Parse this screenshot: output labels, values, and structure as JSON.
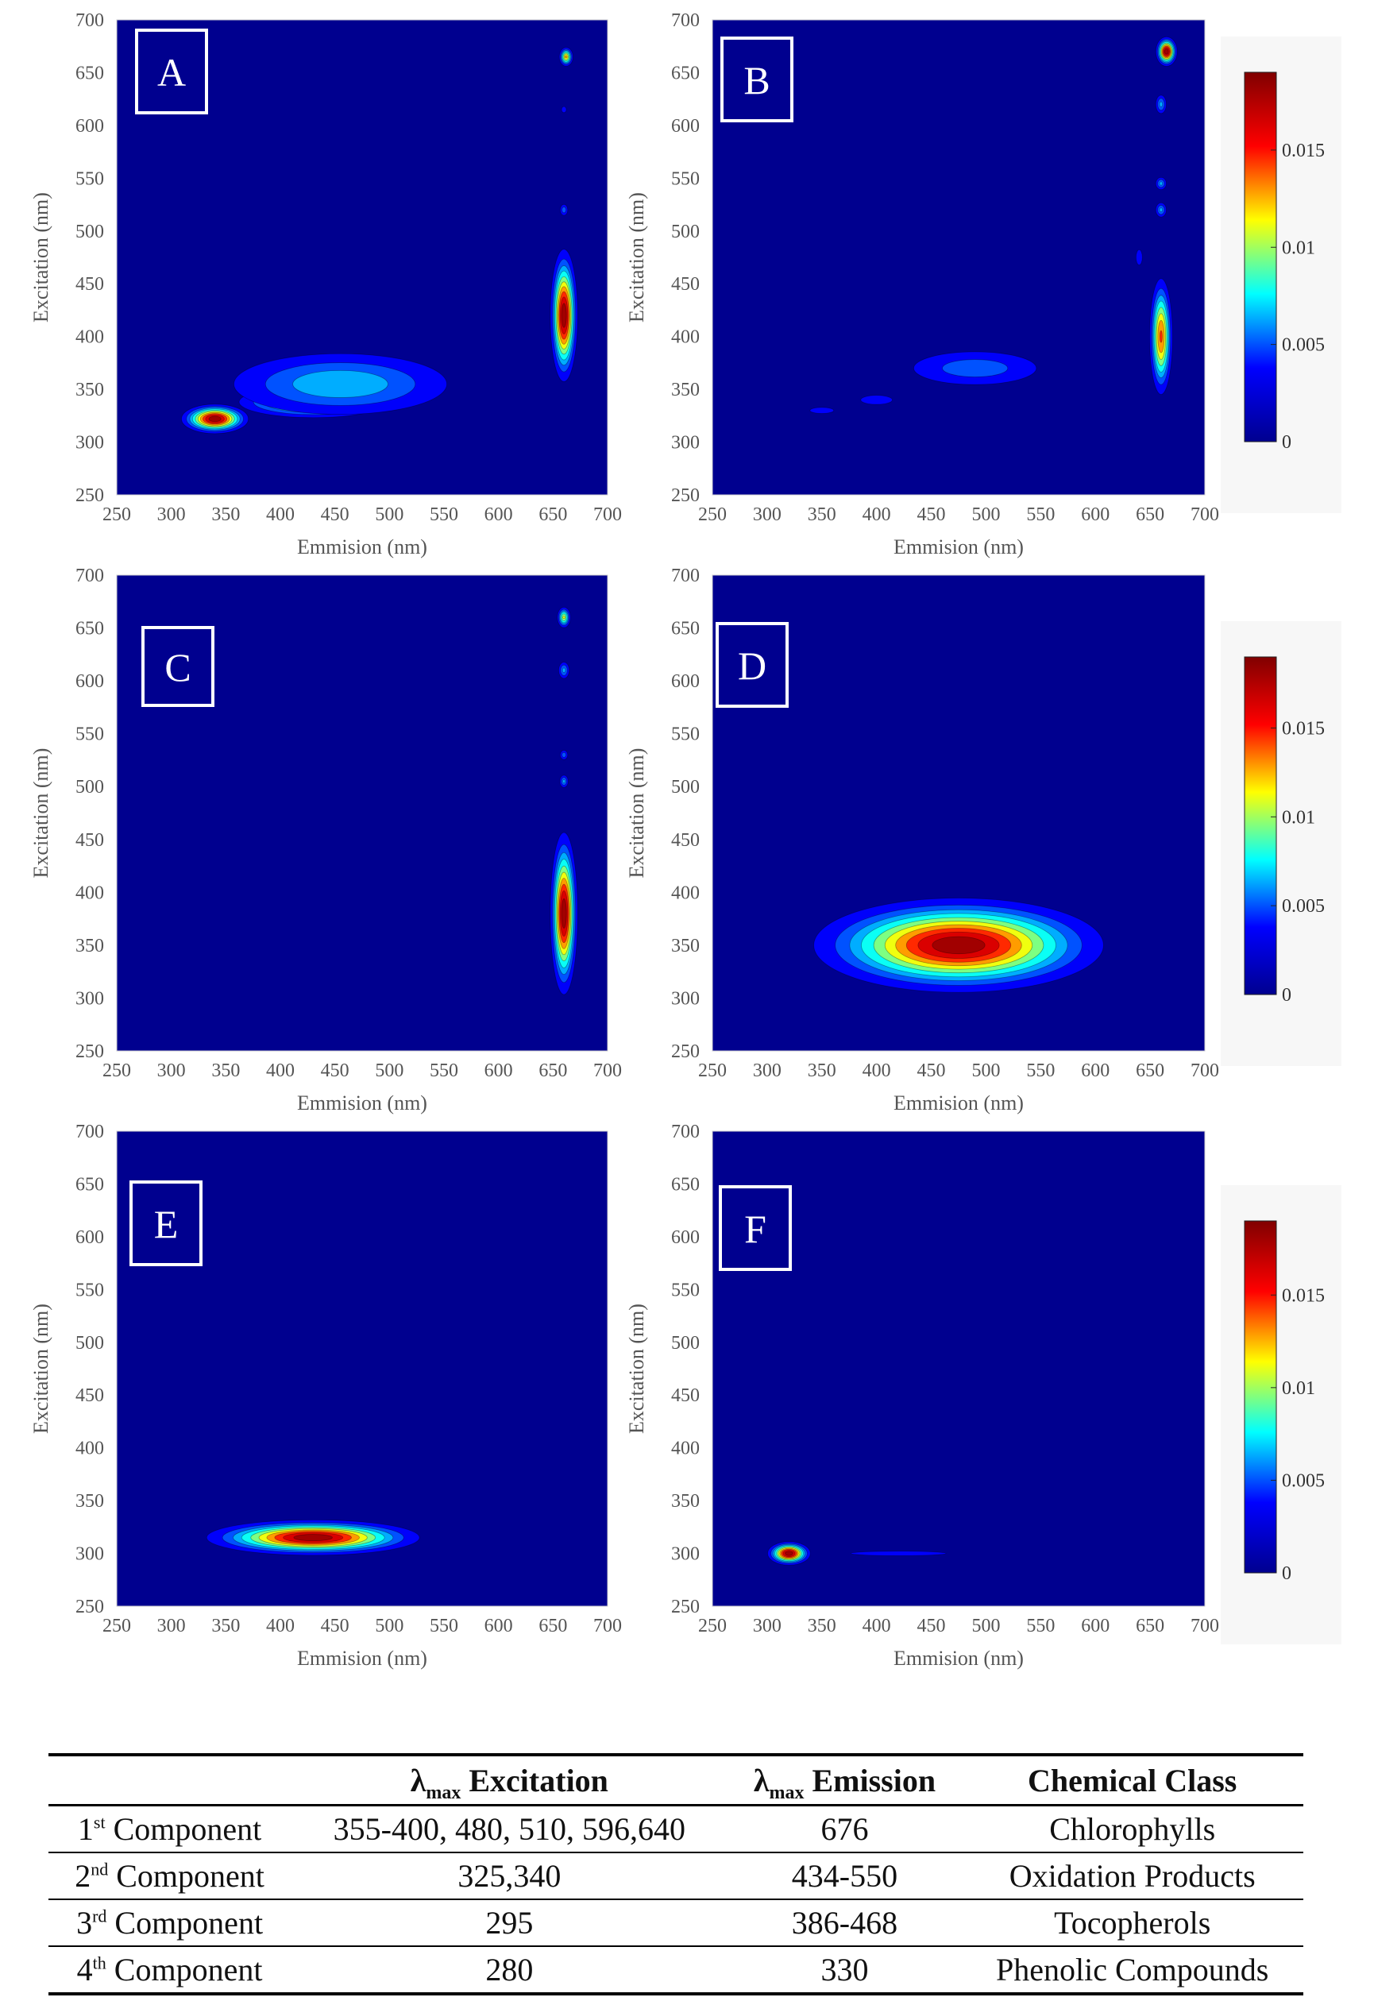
{
  "chart_data": [
    {
      "type": "heatmap",
      "panel": "A",
      "xlabel": "Emmision (nm)",
      "ylabel": "Excitation (nm)",
      "xlim": [
        250,
        700
      ],
      "ylim": [
        250,
        700
      ],
      "xticks": [
        250,
        300,
        350,
        400,
        450,
        500,
        550,
        600,
        650,
        700
      ],
      "yticks": [
        250,
        300,
        350,
        400,
        450,
        500,
        550,
        600,
        650,
        700
      ],
      "peaks": [
        {
          "emission": 340,
          "excitation": 322,
          "intensity": 0.019
        },
        {
          "emission": 430,
          "excitation": 338,
          "intensity": 0.011
        },
        {
          "emission": 455,
          "excitation": 355,
          "intensity": 0.006
        },
        {
          "emission": 660,
          "excitation": 420,
          "intensity": 0.019
        },
        {
          "emission": 662,
          "excitation": 665,
          "intensity": 0.012
        },
        {
          "emission": 660,
          "excitation": 520,
          "intensity": 0.004
        },
        {
          "emission": 660,
          "excitation": 615,
          "intensity": 0.003
        }
      ]
    },
    {
      "type": "heatmap",
      "panel": "B",
      "xlabel": "Emmision (nm)",
      "ylabel": "Excitation (nm)",
      "xlim": [
        250,
        700
      ],
      "ylim": [
        250,
        700
      ],
      "xticks": [
        250,
        300,
        350,
        400,
        450,
        500,
        550,
        600,
        650,
        700
      ],
      "yticks": [
        250,
        300,
        350,
        400,
        450,
        500,
        550,
        600,
        650,
        700
      ],
      "peaks": [
        {
          "emission": 665,
          "excitation": 670,
          "intensity": 0.019
        },
        {
          "emission": 660,
          "excitation": 400,
          "intensity": 0.014
        },
        {
          "emission": 660,
          "excitation": 620,
          "intensity": 0.005
        },
        {
          "emission": 660,
          "excitation": 545,
          "intensity": 0.005
        },
        {
          "emission": 660,
          "excitation": 520,
          "intensity": 0.005
        },
        {
          "emission": 640,
          "excitation": 475,
          "intensity": 0.003
        },
        {
          "emission": 490,
          "excitation": 370,
          "intensity": 0.004
        },
        {
          "emission": 400,
          "excitation": 340,
          "intensity": 0.003
        },
        {
          "emission": 350,
          "excitation": 330,
          "intensity": 0.003
        }
      ]
    },
    {
      "type": "heatmap",
      "panel": "C",
      "xlabel": "Emmision (nm)",
      "ylabel": "Excitation (nm)",
      "xlim": [
        250,
        700
      ],
      "ylim": [
        250,
        700
      ],
      "xticks": [
        250,
        300,
        350,
        400,
        450,
        500,
        550,
        600,
        650,
        700
      ],
      "yticks": [
        250,
        300,
        350,
        400,
        450,
        500,
        550,
        600,
        650,
        700
      ],
      "peaks": [
        {
          "emission": 660,
          "excitation": 380,
          "intensity": 0.019
        },
        {
          "emission": 660,
          "excitation": 660,
          "intensity": 0.01
        },
        {
          "emission": 660,
          "excitation": 610,
          "intensity": 0.005
        },
        {
          "emission": 660,
          "excitation": 530,
          "intensity": 0.004
        },
        {
          "emission": 660,
          "excitation": 505,
          "intensity": 0.005
        }
      ]
    },
    {
      "type": "heatmap",
      "panel": "D",
      "xlabel": "Emmision (nm)",
      "ylabel": "Excitation (nm)",
      "xlim": [
        250,
        700
      ],
      "ylim": [
        250,
        700
      ],
      "xticks": [
        250,
        300,
        350,
        400,
        450,
        500,
        550,
        600,
        650,
        700
      ],
      "yticks": [
        250,
        300,
        350,
        400,
        450,
        500,
        550,
        600,
        650,
        700
      ],
      "peaks": [
        {
          "emission": 475,
          "excitation": 350,
          "intensity": 0.019
        }
      ]
    },
    {
      "type": "heatmap",
      "panel": "E",
      "xlabel": "Emmision (nm)",
      "ylabel": "Excitation (nm)",
      "xlim": [
        250,
        700
      ],
      "ylim": [
        250,
        700
      ],
      "xticks": [
        250,
        300,
        350,
        400,
        450,
        500,
        550,
        600,
        650,
        700
      ],
      "yticks": [
        250,
        300,
        350,
        400,
        450,
        500,
        550,
        600,
        650,
        700
      ],
      "peaks": [
        {
          "emission": 430,
          "excitation": 315,
          "intensity": 0.019
        }
      ]
    },
    {
      "type": "heatmap",
      "panel": "F",
      "xlabel": "Emmision (nm)",
      "ylabel": "Excitation (nm)",
      "xlim": [
        250,
        700
      ],
      "ylim": [
        250,
        700
      ],
      "xticks": [
        250,
        300,
        350,
        400,
        450,
        500,
        550,
        600,
        650,
        700
      ],
      "yticks": [
        250,
        300,
        350,
        400,
        450,
        500,
        550,
        600,
        650,
        700
      ],
      "peaks": [
        {
          "emission": 320,
          "excitation": 300,
          "intensity": 0.019
        },
        {
          "emission": 420,
          "excitation": 300,
          "intensity": 0.003
        }
      ]
    }
  ],
  "colorbar": {
    "range": [
      0,
      0.019
    ],
    "ticks": [
      0,
      0.005,
      0.01,
      0.015
    ],
    "tick_labels": [
      "0",
      "0.005",
      "0.01",
      "0.015"
    ],
    "colors": [
      "#00008f",
      "#0000ff",
      "#00ffff",
      "#ffff00",
      "#ff0000",
      "#800000"
    ]
  },
  "table": {
    "headers": [
      {
        "main": "",
        "sub": "",
        "suffix": ""
      },
      {
        "main": "λ",
        "sub": "max",
        "suffix": " Excitation"
      },
      {
        "main": "λ",
        "sub": "max",
        "suffix": " Emission"
      },
      {
        "main": "Chemical Class",
        "sub": "",
        "suffix": ""
      }
    ],
    "rows": [
      {
        "ord": "1",
        "sup": "st",
        "name": " Component",
        "excitation": "355-400, 480, 510, 596,640",
        "emission": "676",
        "class": "Chlorophylls"
      },
      {
        "ord": "2",
        "sup": "nd",
        "name": " Component",
        "excitation": "325,340",
        "emission": "434-550",
        "class": "Oxidation Products"
      },
      {
        "ord": "3",
        "sup": "rd",
        "name": " Component",
        "excitation": "295",
        "emission": "386-468",
        "class": "Tocopherols"
      },
      {
        "ord": "4",
        "sup": "th",
        "name": " Component",
        "excitation": "280",
        "emission": "330",
        "class": "Phenolic Compounds"
      }
    ]
  }
}
